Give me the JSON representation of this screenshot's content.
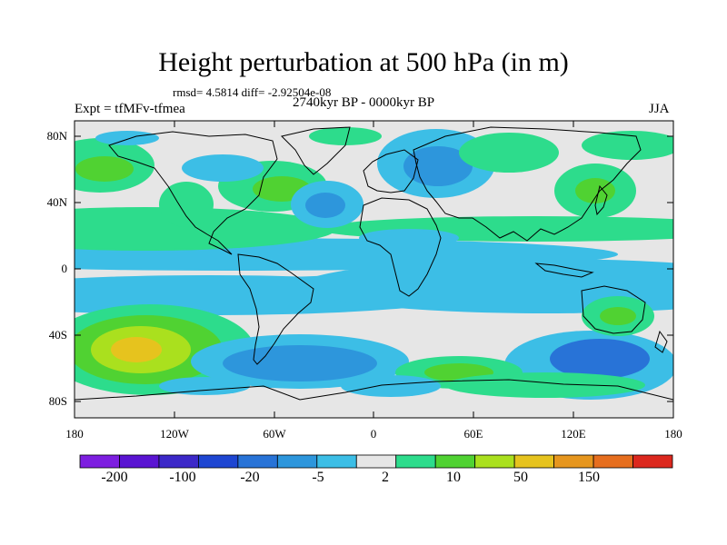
{
  "title": "Height perturbation at 500 hPa (in m)",
  "stats": "rmsd= 4.5814 diff= -2.92504e-08",
  "left_label": "Expt = tfMFv-tfmea",
  "center_label": "2740kyr BP - 0000kyr BP",
  "right_label": "JJA",
  "lat_ticks": [
    "80N",
    "40N",
    "0",
    "40S",
    "80S"
  ],
  "lon_ticks": [
    "180",
    "120W",
    "60W",
    "0",
    "60E",
    "120E",
    "180"
  ],
  "colorbar": {
    "colors": [
      "#7d1ee0",
      "#5a14d2",
      "#3c28c8",
      "#1e46d2",
      "#2873d7",
      "#2d96dc",
      "#3cbee6",
      "#e6e6e6",
      "#2ddc8c",
      "#50d232",
      "#aae01e",
      "#e6c31e",
      "#e6961e",
      "#e66e1e",
      "#dc281e"
    ],
    "labels": [
      "-200",
      "-100",
      "-20",
      "-5",
      "2",
      "10",
      "50",
      "150"
    ]
  },
  "palette": {
    "neutral": "#e6e6e6",
    "neg_light": "#3cbee6",
    "neg_mid": "#2d96dc",
    "neg_dark": "#2873d7",
    "pos_light": "#2ddc8c",
    "pos_mid": "#50d232",
    "pos_strong": "#aae01e",
    "pos_max": "#e6c31e"
  }
}
